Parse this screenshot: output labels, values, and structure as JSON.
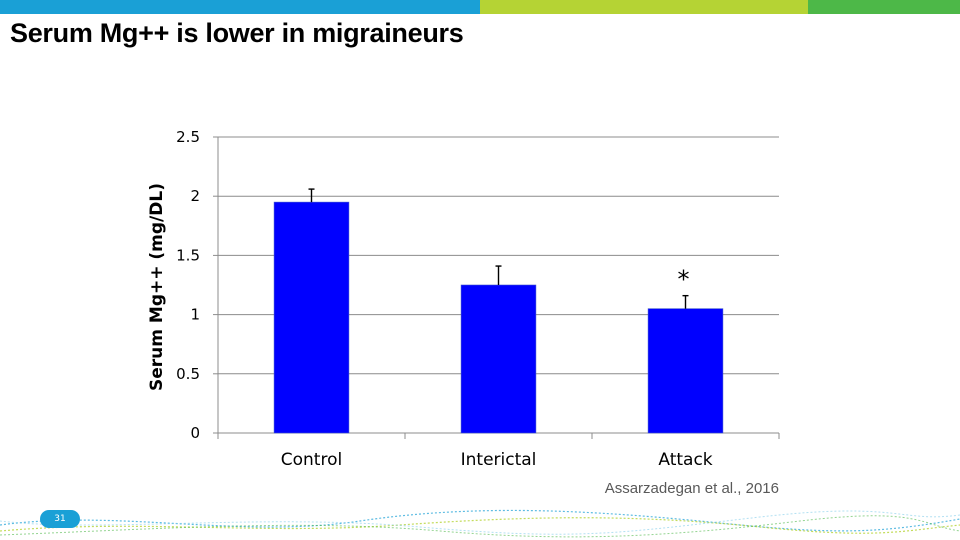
{
  "slide": {
    "title": "Serum Mg++ is lower in migraineurs",
    "citation": "Assarzadegan et al., 2016",
    "page_number": "31",
    "top_bar_colors": [
      "#1aa0d6",
      "#b5d334",
      "#4db848"
    ]
  },
  "chart_data": {
    "type": "bar",
    "categories": [
      "Control",
      "Interictal",
      "Attack"
    ],
    "values": [
      1.95,
      1.25,
      1.05
    ],
    "error_bars": [
      0.11,
      0.16,
      0.11
    ],
    "annotations": [
      {
        "category": "Attack",
        "text": "*"
      }
    ],
    "ylabel": "Serum Mg++ (mg/DL)",
    "xlabel": "",
    "ylim": [
      0,
      2.5
    ],
    "yticks": [
      0,
      0.5,
      1,
      1.5,
      2,
      2.5
    ],
    "ytick_labels": [
      "0",
      "0.5",
      "1",
      "1.5",
      "2",
      "2.5"
    ],
    "grid": true,
    "bar_color": "#0000ff"
  }
}
